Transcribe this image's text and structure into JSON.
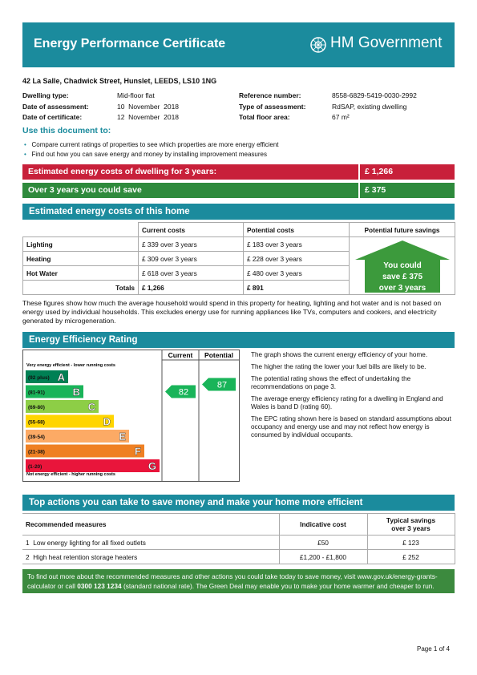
{
  "header": {
    "title": "Energy Performance Certificate",
    "logo": "HM Government"
  },
  "address": "42 La Salle, Chadwick Street, Hunslet, LEEDS, LS10 1NG",
  "details": {
    "left": [
      {
        "label": "Dwelling type:",
        "value": "Mid-floor flat"
      },
      {
        "label": "Date of assessment:",
        "value": "10  November  2018"
      },
      {
        "label": "Date of certificate:",
        "value": "12  November  2018"
      }
    ],
    "right": [
      {
        "label": "Reference number:",
        "value": "8558-6829-5419-0030-2992"
      },
      {
        "label": "Type of assessment:",
        "value": "RdSAP, existing dwelling"
      },
      {
        "label": "Total floor area:",
        "value": "67 m²"
      }
    ]
  },
  "use_document": {
    "title": "Use this document to:",
    "bullets": [
      "Compare current ratings of properties to see which properties are more energy efficient",
      "Find out how you can save energy and money by installing improvement measures"
    ]
  },
  "summary": [
    {
      "label": "Estimated energy costs of dwelling for 3 years:",
      "value": "£ 1,266"
    },
    {
      "label": "Over 3 years you could save",
      "value": "£ 375"
    }
  ],
  "costs": {
    "title": "Estimated energy costs of this home",
    "headers": [
      "Current costs",
      "Potential costs",
      "Potential future savings"
    ],
    "rows": [
      {
        "label": "Lighting",
        "current": "£ 339 over 3 years",
        "potential": "£ 183 over 3 years"
      },
      {
        "label": "Heating",
        "current": "£ 309 over 3 years",
        "potential": "£ 228 over 3 years"
      },
      {
        "label": "Hot Water",
        "current": "£ 618 over 3 years",
        "potential": "£ 480 over 3 years"
      }
    ],
    "totals": {
      "label": "Totals",
      "current": "£ 1,266",
      "potential": "£ 891"
    },
    "savings": [
      "You could",
      "save £ 375",
      "over 3 years"
    ],
    "note": "These figures show how much the average household would spend in this property for heating, lighting and hot water and is not based on energy used by individual households. This excludes energy use for running appliances like TVs, computers and cookers, and electricity generated by microgeneration."
  },
  "rating": {
    "title": "Energy Efficiency Rating",
    "columns": [
      "Current",
      "Potential"
    ],
    "top_note": "Very energy efficient - lower running costs",
    "bottom_note": "Not energy efficient - higher running costs",
    "bands": [
      {
        "range": "(92 plus)",
        "letter": "A",
        "color": "#008054"
      },
      {
        "range": "(81-91)",
        "letter": "B",
        "color": "#19b459"
      },
      {
        "range": "(69-80)",
        "letter": "C",
        "color": "#8dce46"
      },
      {
        "range": "(55-68)",
        "letter": "D",
        "color": "#ffd500"
      },
      {
        "range": "(39-54)",
        "letter": "E",
        "color": "#fcaa65"
      },
      {
        "range": "(21-38)",
        "letter": "F",
        "color": "#ef8023"
      },
      {
        "range": "(1-20)",
        "letter": "G",
        "color": "#e9153b"
      }
    ],
    "current": 82,
    "potential": 87,
    "paragraphs": [
      "The graph shows the current energy efficiency of your home.",
      "The higher the rating the lower your fuel bills are likely to be.",
      "The potential rating shows the effect of undertaking the recommendations on page 3.",
      "The average energy efficiency rating for a dwelling in England and Wales is band D (rating 60).",
      "The EPC rating shown here is based on standard assumptions about occupancy and energy use and may not reflect how energy is consumed by individual occupants."
    ]
  },
  "actions": {
    "title": "Top actions you can take to save money and make your home more efficient",
    "headers": [
      "Recommended measures",
      "Indicative cost",
      "Typical savings over 3 years"
    ],
    "rows": [
      {
        "number": "1",
        "measure": "Low energy lighting for all fixed outlets",
        "cost": "£50",
        "savings": "£ 123"
      },
      {
        "number": "2",
        "measure": "High heat retention storage heaters",
        "cost": "£1,200 - £1,800",
        "savings": "£ 252"
      }
    ]
  },
  "footer": {
    "text_before": "To find out more about the recommended measures and other actions you could take today to save money, visit www.gov.uk/energy-grants-calculator or call ",
    "phone": "0300 123 1234",
    "text_after": " (standard national rate). The Green Deal may enable you to make your home warmer and cheaper to run."
  },
  "page": "Page 1 of 4"
}
